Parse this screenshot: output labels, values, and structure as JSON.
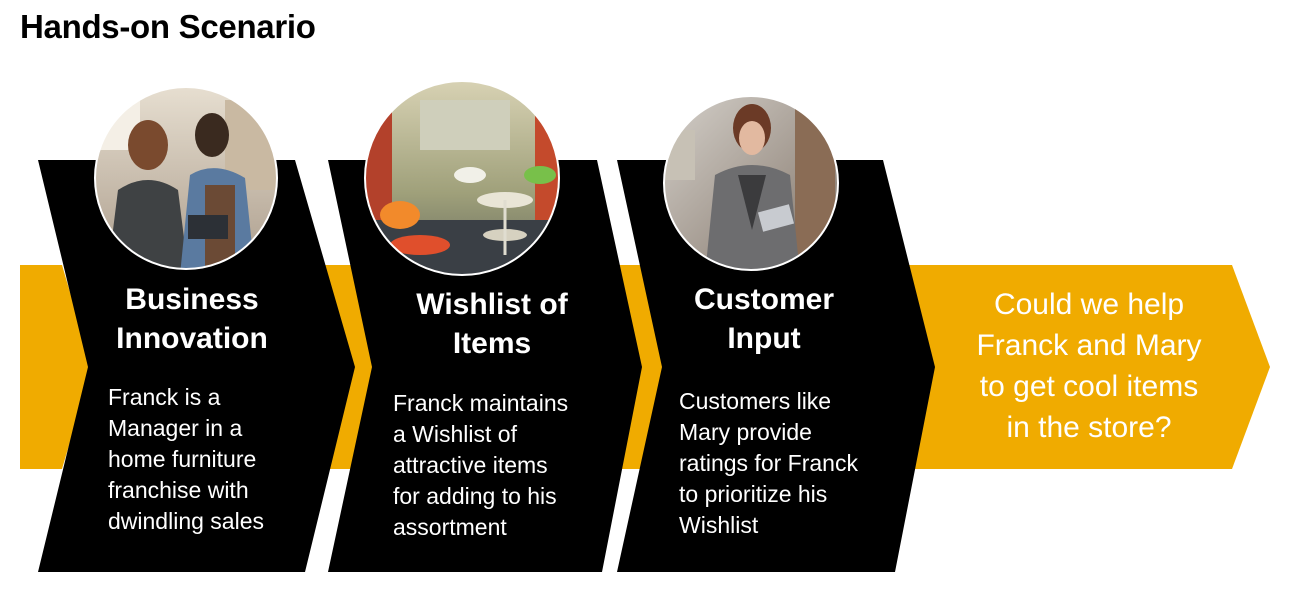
{
  "title": "Hands-on Scenario",
  "colors": {
    "accent": "#F0AB00",
    "panel": "#000000",
    "text_on_dark": "#FFFFFF"
  },
  "steps": [
    {
      "heading": "Business\nInnovation",
      "body": "Franck is a\nManager in a\nhome furniture\nfranchise with\ndwindling sales",
      "photo": "manager-and-employee-with-tablet-photo"
    },
    {
      "heading": "Wishlist of\nItems",
      "body": "Franck maintains\na Wishlist of\nattractive items\nfor adding to his\nassortment",
      "photo": "furniture-showroom-photo"
    },
    {
      "heading": "Customer\nInput",
      "body": "Customers like\nMary provide\nratings for Franck\nto prioritize his\nWishlist",
      "photo": "customer-with-tablet-photo"
    }
  ],
  "question": "Could we help\nFranck and Mary\nto get  cool items\nin the store?"
}
